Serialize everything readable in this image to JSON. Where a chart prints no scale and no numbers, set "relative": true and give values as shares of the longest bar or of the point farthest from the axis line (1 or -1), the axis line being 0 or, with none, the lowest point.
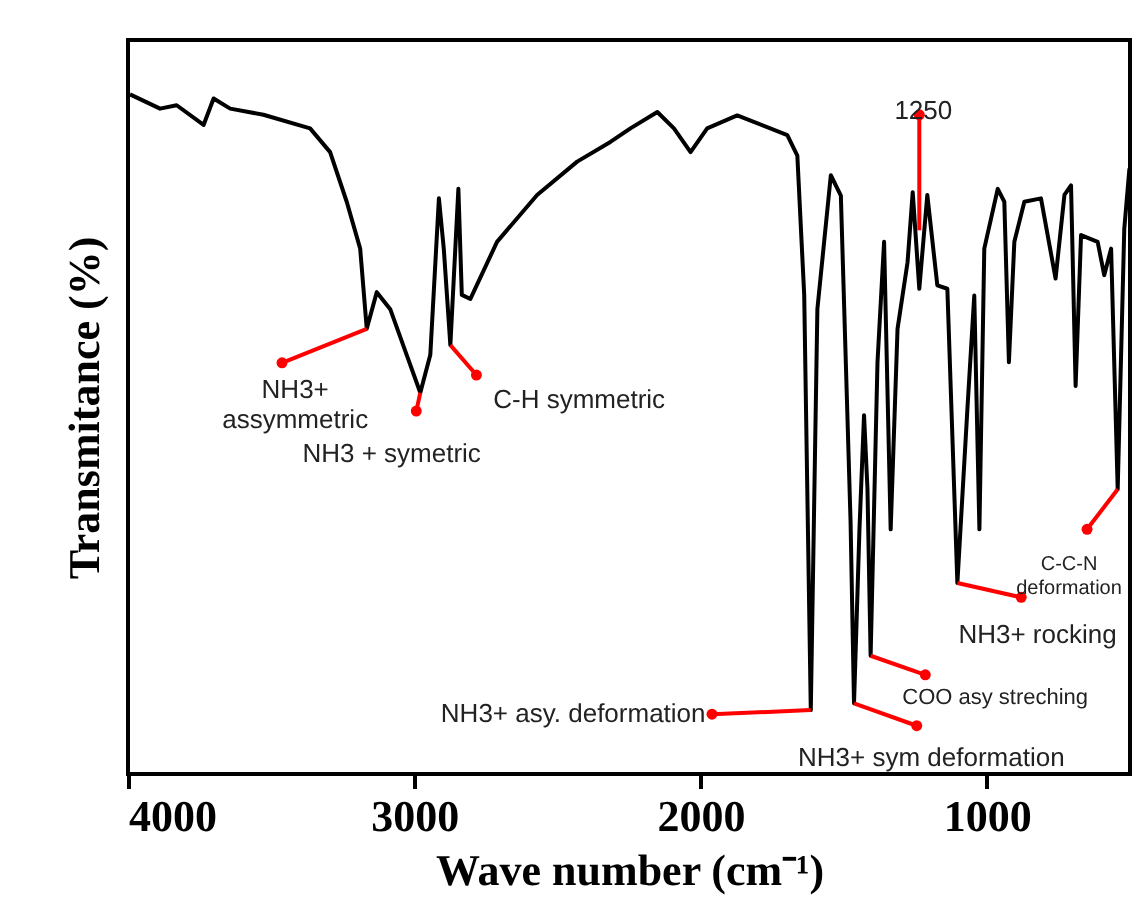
{
  "chart_data": {
    "type": "line",
    "relative": true,
    "xlabel": "Wave number (cm⁻¹)",
    "ylabel": "Transmitance (%)",
    "xlim": [
      4000,
      500
    ],
    "xticks": [
      4000,
      3000,
      2000,
      1000
    ],
    "tick_labels": "x",
    "grid": false,
    "marker": "none",
    "line_style": "solid",
    "series": [
      {
        "color": "#000000",
        "x": [
          3993,
          3888,
          3830,
          3736,
          3701,
          3643,
          3527,
          3364,
          3294,
          3236,
          3189,
          3166,
          3131,
          3084,
          3026,
          2979,
          2944,
          2914,
          2897,
          2874,
          2846,
          2834,
          2804,
          2711,
          2571,
          2431,
          2315,
          2245,
          2151,
          2093,
          2035,
          1977,
          1872,
          1697,
          1662,
          1638,
          1615,
          1592,
          1545,
          1510,
          1476,
          1464,
          1445,
          1429,
          1417,
          1406,
          1382,
          1359,
          1336,
          1312,
          1277,
          1259,
          1236,
          1208,
          1173,
          1138,
          1103,
          1068,
          1044,
          1026,
          1009,
          962,
          939,
          923,
          904,
          869,
          811,
          760,
          729,
          706,
          690,
          671,
          613,
          590,
          566,
          543,
          520,
          502
        ],
        "values": [
          1.0,
          0.979,
          0.984,
          0.955,
          0.994,
          0.979,
          0.97,
          0.95,
          0.915,
          0.842,
          0.773,
          0.655,
          0.709,
          0.684,
          0.616,
          0.561,
          0.617,
          0.847,
          0.773,
          0.631,
          0.861,
          0.705,
          0.699,
          0.783,
          0.852,
          0.901,
          0.93,
          0.95,
          0.974,
          0.95,
          0.915,
          0.95,
          0.969,
          0.94,
          0.91,
          0.705,
          0.094,
          0.684,
          0.881,
          0.851,
          0.37,
          0.104,
          0.36,
          0.528,
          0.419,
          0.174,
          0.606,
          0.783,
          0.36,
          0.655,
          0.753,
          0.856,
          0.714,
          0.852,
          0.719,
          0.714,
          0.281,
          0.537,
          0.704,
          0.36,
          0.773,
          0.861,
          0.842,
          0.606,
          0.783,
          0.842,
          0.847,
          0.729,
          0.852,
          0.866,
          0.571,
          0.793,
          0.783,
          0.734,
          0.773,
          0.419,
          0.802,
          0.891
        ]
      }
    ],
    "annotations": [
      {
        "text": "NH3+\nassymmetric",
        "x": 3166,
        "y": 0.655
      },
      {
        "text": "NH3 + symetric",
        "x": 2979,
        "y": 0.561
      },
      {
        "text": "C-H symmetric",
        "x": 2874,
        "y": 0.631
      },
      {
        "text": "1250",
        "x": 1236,
        "y": 0.8
      },
      {
        "text": "NH3+ asy. deformation",
        "x": 1615,
        "y": 0.094
      },
      {
        "text": "NH3+ sym deformation",
        "x": 1464,
        "y": 0.104
      },
      {
        "text": "COO asy streching",
        "x": 1406,
        "y": 0.174
      },
      {
        "text": "NH3+ rocking",
        "x": 1103,
        "y": 0.281
      },
      {
        "text": "C-C-N\ndeformation",
        "x": 543,
        "y": 0.419
      }
    ]
  }
}
